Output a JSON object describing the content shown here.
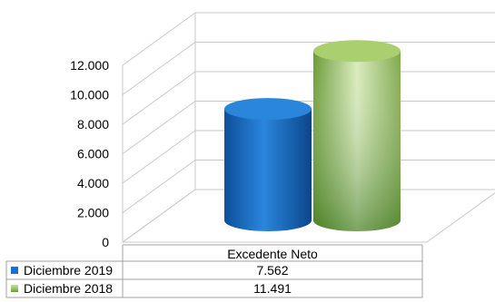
{
  "chart_data": {
    "type": "bar",
    "style": "3d-cylinder",
    "categories": [
      "Excedente Neto"
    ],
    "series": [
      {
        "name": "Diciembre 2019",
        "values": [
          7562
        ],
        "value_labels": [
          "7.562"
        ],
        "color": "#1F6FC6"
      },
      {
        "name": "Diciembre 2018",
        "values": [
          11491
        ],
        "value_labels": [
          "11.491"
        ],
        "color": "#8DB85A"
      }
    ],
    "ylim": [
      0,
      12000
    ],
    "yticks": [
      0,
      2000,
      4000,
      6000,
      8000,
      10000,
      12000
    ],
    "ytick_labels": [
      "0",
      "2.000",
      "4.000",
      "6.000",
      "8.000",
      "10.000",
      "12.000"
    ],
    "grid": true,
    "legend": "data-table-bottom"
  }
}
